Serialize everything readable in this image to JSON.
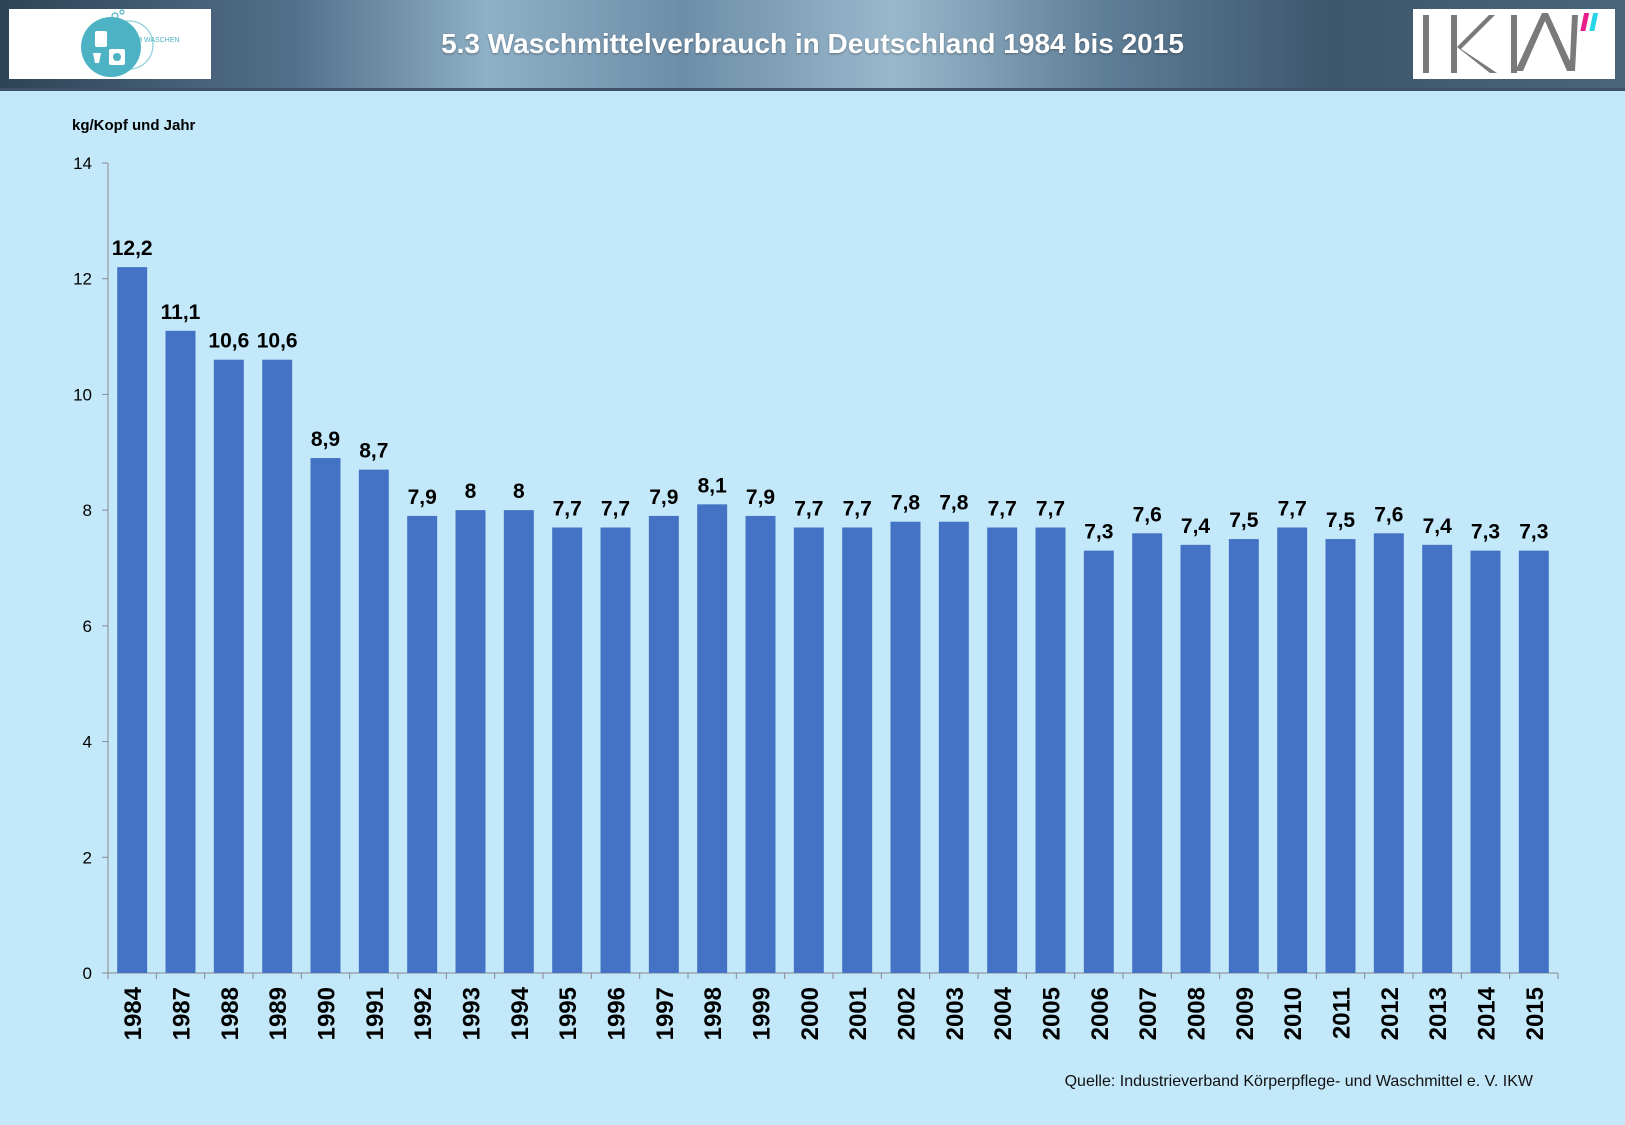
{
  "header": {
    "title": "5.3 Waschmittelverbrauch in Deutschland 1984 bis 2015"
  },
  "logos": {
    "left_text": "FORUM WASCHEN",
    "right_text": "IKW"
  },
  "colors": {
    "bar": "#4472c4",
    "background": "#c2e8f9",
    "logo_teal": "#4db3c4",
    "logo_magenta": "#e91e8c",
    "logo_cyan": "#29d3e8",
    "logo_gray": "#7a7a7a"
  },
  "chart_data": {
    "type": "bar",
    "title": "",
    "ylabel": "kg/Kopf und Jahr",
    "xlabel": "",
    "ylim": [
      0,
      14
    ],
    "yticks": [
      0,
      2,
      4,
      6,
      8,
      10,
      12,
      14
    ],
    "grid": false,
    "categories": [
      "1984",
      "1987",
      "1988",
      "1989",
      "1990",
      "1991",
      "1992",
      "1993",
      "1994",
      "1995",
      "1996",
      "1997",
      "1998",
      "1999",
      "2000",
      "2001",
      "2002",
      "2003",
      "2004",
      "2005",
      "2006",
      "2007",
      "2008",
      "2009",
      "2010",
      "2011",
      "2012",
      "2013",
      "2014",
      "2015"
    ],
    "values": [
      12.2,
      11.1,
      10.6,
      10.6,
      8.9,
      8.7,
      7.9,
      8,
      8,
      7.7,
      7.7,
      7.9,
      8.1,
      7.9,
      7.7,
      7.7,
      7.8,
      7.8,
      7.7,
      7.7,
      7.3,
      7.6,
      7.4,
      7.5,
      7.7,
      7.5,
      7.6,
      7.4,
      7.3,
      7.3
    ],
    "value_labels": [
      "12,2",
      "11,1",
      "10,6",
      "10,6",
      "8,9",
      "8,7",
      "7,9",
      "8",
      "8",
      "7,7",
      "7,7",
      "7,9",
      "8,1",
      "7,9",
      "7,7",
      "7,7",
      "7,8",
      "7,8",
      "7,7",
      "7,7",
      "7,3",
      "7,6",
      "7,4",
      "7,5",
      "7,7",
      "7,5",
      "7,6",
      "7,4",
      "7,3",
      "7,3"
    ]
  },
  "source": "Quelle: Industrieverband Körperpflege- und Waschmittel e. V. IKW"
}
